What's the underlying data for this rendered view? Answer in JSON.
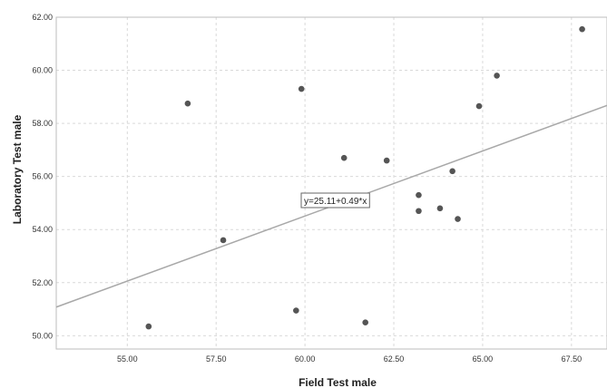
{
  "chart_data": {
    "type": "scatter",
    "title": "",
    "xlabel": "Field Test male",
    "ylabel": "Laboratory Test male",
    "xlim": [
      53.0,
      68.5
    ],
    "ylim": [
      49.5,
      62.0
    ],
    "x_ticks": [
      55.0,
      57.5,
      60.0,
      62.5,
      65.0,
      67.5
    ],
    "x_tick_labels": [
      "55.00",
      "57.50",
      "60.00",
      "62.50",
      "65.00",
      "67.50"
    ],
    "y_ticks": [
      50.0,
      52.0,
      54.0,
      56.0,
      58.0,
      60.0,
      62.0
    ],
    "y_tick_labels": [
      "50.00",
      "52.00",
      "54.00",
      "56.00",
      "58.00",
      "60.00",
      "62.00"
    ],
    "grid": true,
    "points": [
      {
        "x": 55.6,
        "y": 50.35
      },
      {
        "x": 56.7,
        "y": 58.75
      },
      {
        "x": 57.7,
        "y": 53.6
      },
      {
        "x": 59.75,
        "y": 50.95
      },
      {
        "x": 59.9,
        "y": 59.3
      },
      {
        "x": 61.1,
        "y": 56.7
      },
      {
        "x": 61.7,
        "y": 50.5
      },
      {
        "x": 62.3,
        "y": 56.6
      },
      {
        "x": 63.2,
        "y": 55.3
      },
      {
        "x": 63.2,
        "y": 54.7
      },
      {
        "x": 63.8,
        "y": 54.8
      },
      {
        "x": 64.15,
        "y": 56.2
      },
      {
        "x": 64.3,
        "y": 54.4
      },
      {
        "x": 64.9,
        "y": 58.65
      },
      {
        "x": 65.4,
        "y": 59.8
      },
      {
        "x": 67.8,
        "y": 61.55
      }
    ],
    "fit_line": {
      "intercept": 25.11,
      "slope": 0.49
    },
    "fit_label": "y=25.11+0.49*x",
    "colors": {
      "points": "#555555",
      "fit_line": "#a8a8a8",
      "grid": "#d9d9d9"
    }
  }
}
